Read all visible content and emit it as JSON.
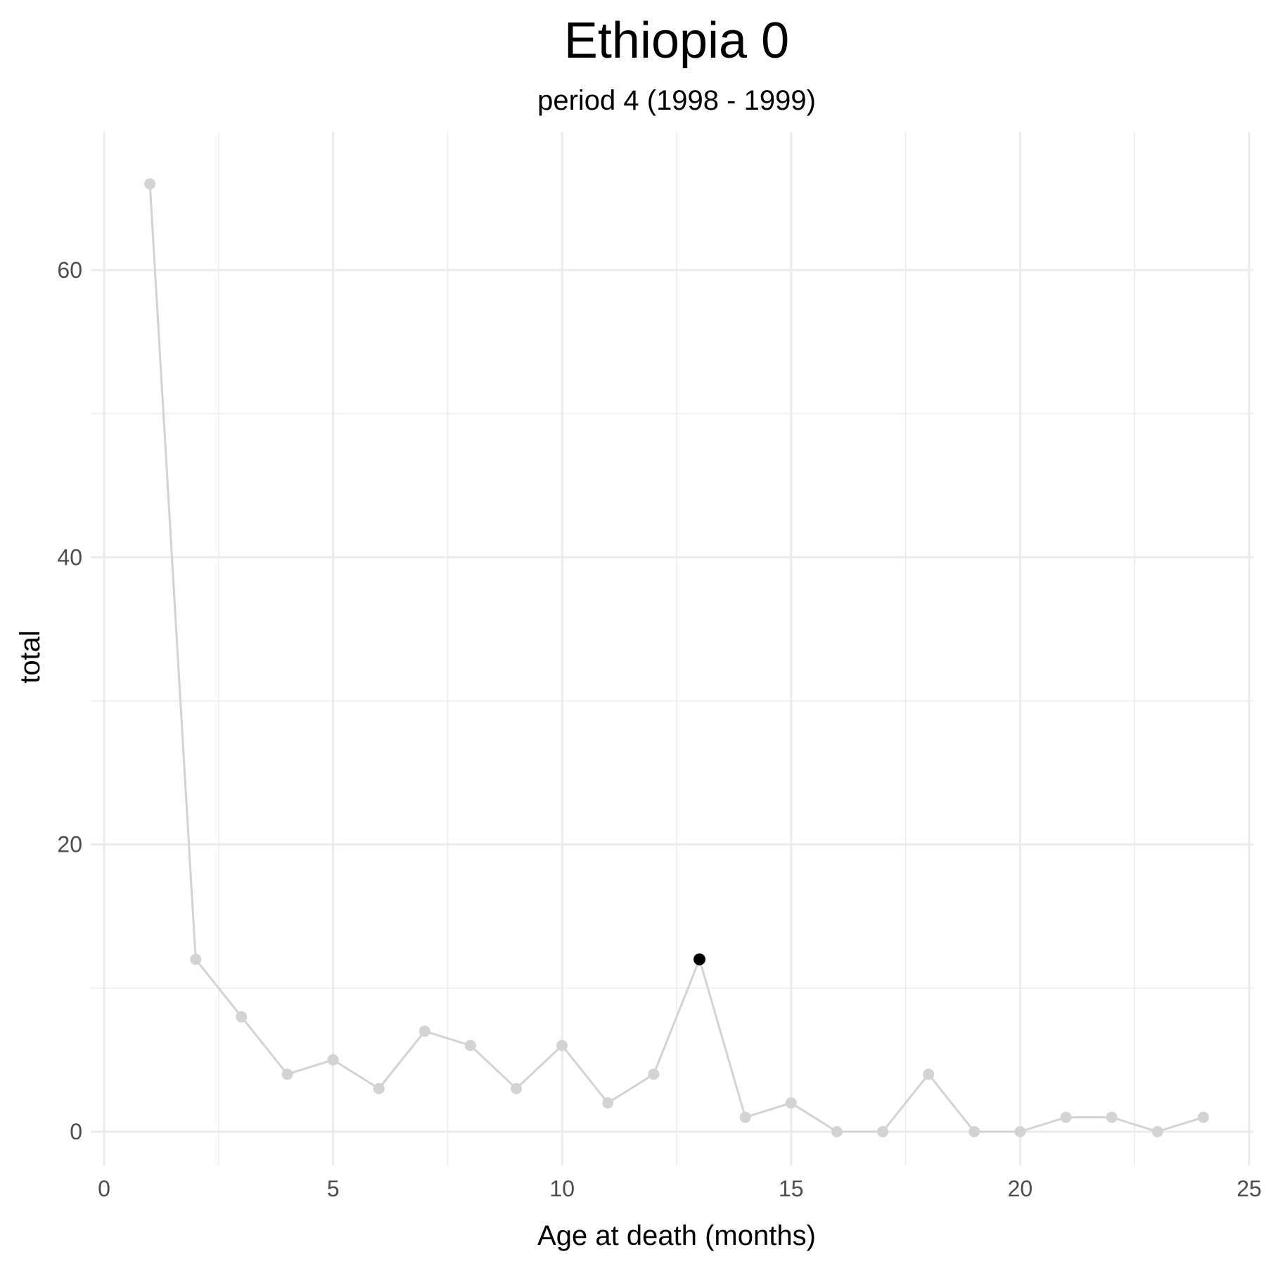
{
  "chart_data": {
    "type": "line",
    "title": "Ethiopia 0",
    "subtitle": "period 4 (1998 - 1999)",
    "xlabel": "Age at death (months)",
    "ylabel": "total",
    "xlim": [
      0,
      25
    ],
    "ylim": [
      -2,
      69
    ],
    "x_ticks": [
      0,
      5,
      10,
      15,
      20,
      25
    ],
    "y_ticks": [
      0,
      20,
      40,
      60
    ],
    "grid": true,
    "legend": "none",
    "series": [
      {
        "x": [
          1,
          2,
          3,
          4,
          5,
          6,
          7,
          8,
          9,
          10,
          11,
          12,
          13,
          14,
          15,
          16,
          17,
          18,
          19,
          20,
          21,
          22,
          23,
          24
        ],
        "values": [
          66,
          12,
          8,
          4,
          5,
          3,
          7,
          6,
          3,
          6,
          2,
          4,
          12,
          1,
          2,
          0,
          0,
          4,
          0,
          0,
          1,
          1,
          0,
          1
        ],
        "color": "#d3d3d3"
      }
    ],
    "highlight": {
      "x": 13,
      "y": 12,
      "color": "#000000"
    }
  }
}
